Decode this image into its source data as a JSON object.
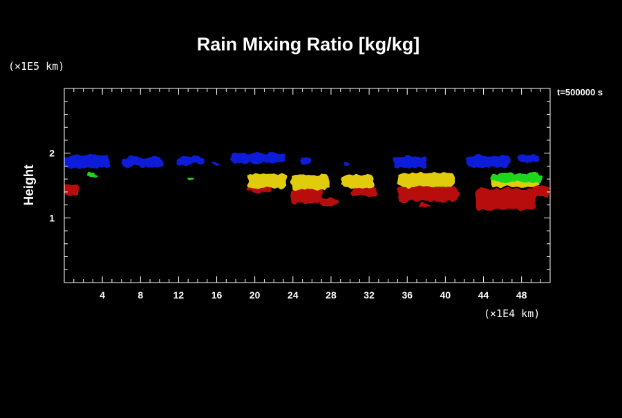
{
  "chart_data": {
    "type": "heatmap",
    "title": "Rain Mixing Ratio [kg/kg]",
    "xlabel": "",
    "ylabel": "Height",
    "x_unit": "(×1E4 km)",
    "y_unit": "(×1E5 km)",
    "time_label": "t=500000 s",
    "xlim": [
      0,
      51
    ],
    "ylim": [
      0,
      3
    ],
    "x_ticks": [
      4,
      8,
      12,
      16,
      20,
      24,
      28,
      32,
      36,
      40,
      44,
      48
    ],
    "y_ticks": [
      1,
      2
    ],
    "grid": false,
    "colors": {
      "blue": "#0a1fd8",
      "green": "#1fd81f",
      "yellow": "#e0cc10",
      "red": "#b80c0c",
      "axis": "#ffffff",
      "background": "#000000"
    },
    "regions": [
      {
        "color": "blue",
        "x": [
          0,
          4.8
        ],
        "y": [
          1.77,
          1.97
        ]
      },
      {
        "color": "blue",
        "x": [
          6.0,
          10.3
        ],
        "y": [
          1.79,
          1.94
        ]
      },
      {
        "color": "blue",
        "x": [
          11.8,
          14.8
        ],
        "y": [
          1.83,
          1.95
        ]
      },
      {
        "color": "blue",
        "x": [
          15.4,
          16.2
        ],
        "y": [
          1.8,
          1.86
        ]
      },
      {
        "color": "blue",
        "x": [
          17.5,
          23.2
        ],
        "y": [
          1.85,
          2.0
        ]
      },
      {
        "color": "blue",
        "x": [
          24.7,
          26.0
        ],
        "y": [
          1.83,
          1.92
        ]
      },
      {
        "color": "blue",
        "x": [
          29.2,
          30.0
        ],
        "y": [
          1.81,
          1.87
        ]
      },
      {
        "color": "blue",
        "x": [
          34.6,
          38.1
        ],
        "y": [
          1.77,
          1.95
        ]
      },
      {
        "color": "blue",
        "x": [
          42.2,
          46.8
        ],
        "y": [
          1.78,
          1.97
        ]
      },
      {
        "color": "blue",
        "x": [
          47.6,
          50.0
        ],
        "y": [
          1.86,
          1.97
        ]
      },
      {
        "color": "green",
        "x": [
          2.5,
          3.5
        ],
        "y": [
          1.62,
          1.7
        ]
      },
      {
        "color": "green",
        "x": [
          13.0,
          13.6
        ],
        "y": [
          1.58,
          1.62
        ]
      },
      {
        "color": "green",
        "x": [
          44.8,
          50.2
        ],
        "y": [
          1.55,
          1.68
        ]
      },
      {
        "color": "yellow",
        "x": [
          19.2,
          23.3
        ],
        "y": [
          1.46,
          1.68
        ]
      },
      {
        "color": "yellow",
        "x": [
          23.8,
          27.8
        ],
        "y": [
          1.44,
          1.66
        ]
      },
      {
        "color": "yellow",
        "x": [
          29.2,
          32.5
        ],
        "y": [
          1.46,
          1.66
        ]
      },
      {
        "color": "yellow",
        "x": [
          35.0,
          41.0
        ],
        "y": [
          1.48,
          1.7
        ]
      },
      {
        "color": "yellow",
        "x": [
          44.8,
          49.8
        ],
        "y": [
          1.48,
          1.68
        ]
      },
      {
        "color": "red",
        "x": [
          0,
          1.5
        ],
        "y": [
          1.34,
          1.52
        ]
      },
      {
        "color": "red",
        "x": [
          19.2,
          21.8
        ],
        "y": [
          1.4,
          1.48
        ]
      },
      {
        "color": "red",
        "x": [
          23.8,
          27.2
        ],
        "y": [
          1.22,
          1.45
        ]
      },
      {
        "color": "red",
        "x": [
          26.8,
          28.7
        ],
        "y": [
          1.18,
          1.3
        ]
      },
      {
        "color": "red",
        "x": [
          30.2,
          32.8
        ],
        "y": [
          1.33,
          1.48
        ]
      },
      {
        "color": "red",
        "x": [
          35.0,
          41.4
        ],
        "y": [
          1.26,
          1.48
        ]
      },
      {
        "color": "red",
        "x": [
          37.2,
          38.5
        ],
        "y": [
          1.17,
          1.22
        ]
      },
      {
        "color": "red",
        "x": [
          43.2,
          49.5
        ],
        "y": [
          1.13,
          1.45
        ]
      },
      {
        "color": "red",
        "x": [
          49.2,
          51.0
        ],
        "y": [
          1.32,
          1.5
        ]
      }
    ]
  }
}
